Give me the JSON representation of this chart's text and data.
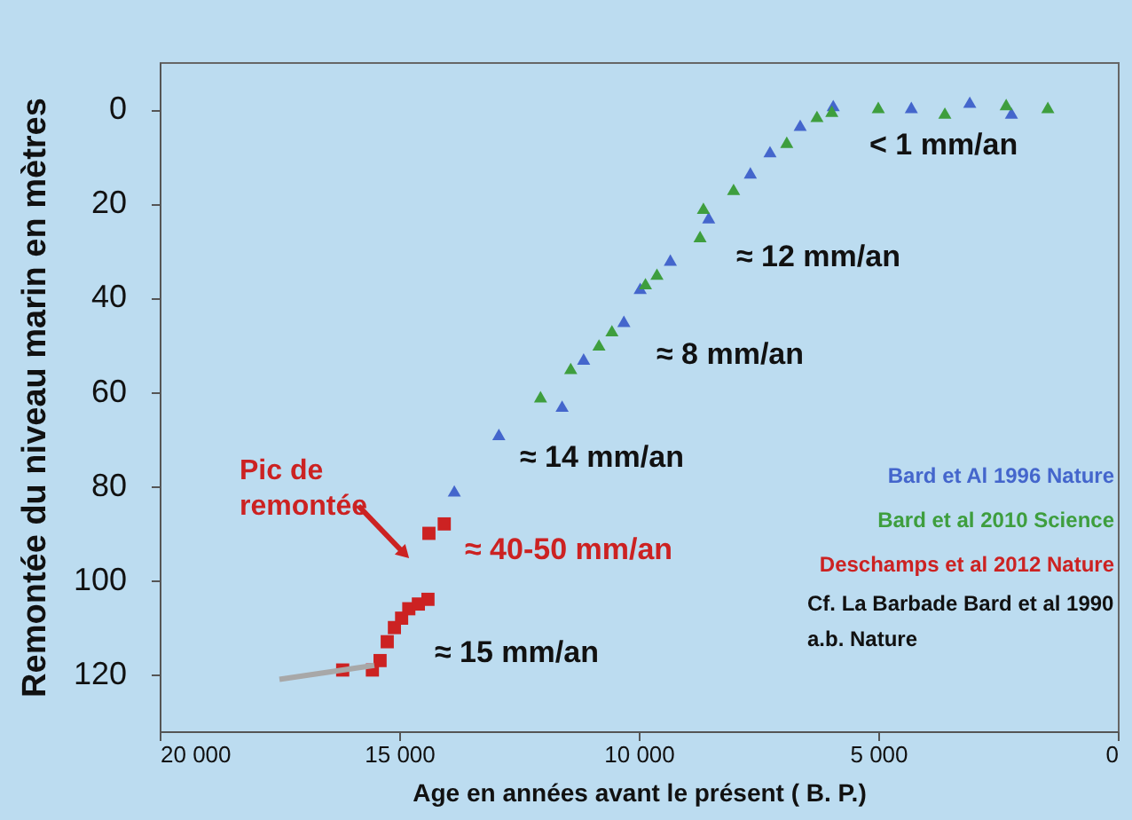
{
  "chart_data": {
    "type": "scatter",
    "xlabel": "Age en années avant le présent  ( B. P.)",
    "ylabel": "Remontée du niveau marin en mètres",
    "xlim": [
      20000,
      0
    ],
    "ylim": [
      132,
      -10
    ],
    "xticks": [
      {
        "value": 20000,
        "label": "20 000"
      },
      {
        "value": 15000,
        "label": "15 000"
      },
      {
        "value": 10000,
        "label": "10 000"
      },
      {
        "value": 5000,
        "label": "5 000"
      },
      0
    ],
    "yticks": [
      0,
      20,
      40,
      60,
      80,
      100,
      120
    ],
    "grid": false,
    "legend": "right",
    "series": [
      {
        "name": "Bard et Al 1996  Nature",
        "color": "#4466cc",
        "marker": "triangle",
        "x": [
          13850,
          12920,
          11600,
          11150,
          10310,
          9970,
          9340,
          8540,
          7670,
          7260,
          6630,
          5940,
          4310,
          3090,
          2220
        ],
        "values": [
          81,
          69,
          63,
          53,
          45,
          38,
          32,
          23,
          13.5,
          9,
          3.4,
          -0.8,
          -0.4,
          -1.5,
          0.8
        ]
      },
      {
        "name": "Bard et al 2010 Science",
        "color": "#3e9e3e",
        "marker": "triangle",
        "x": [
          12050,
          11420,
          10830,
          10560,
          9860,
          9620,
          8720,
          8650,
          8020,
          6910,
          6280,
          5970,
          5000,
          3610,
          2330,
          1460
        ],
        "values": [
          61,
          55,
          50,
          47,
          37,
          35,
          27,
          21,
          17,
          7,
          1.5,
          0.4,
          -0.4,
          0.8,
          -1,
          -0.4
        ]
      },
      {
        "name": "Deschamps et al 2012 Nature",
        "color": "#cc2222",
        "marker": "square",
        "x": [
          16180,
          15560,
          15400,
          15250,
          15100,
          14950,
          14800,
          14600,
          14400,
          14380,
          14060
        ],
        "values": [
          119,
          119,
          117,
          113,
          110,
          108,
          106,
          105,
          104,
          90,
          88
        ]
      },
      {
        "type": "line",
        "color": "#a8a8a8",
        "x": [
          17500,
          15520
        ],
        "values": [
          121,
          118
        ]
      }
    ],
    "annotations": [
      "< 1 mm/an",
      "≈ 12 mm/an",
      "≈ 8 mm/an",
      "≈ 14 mm/an",
      "≈ 40-50 mm/an",
      "≈ 15 mm/an",
      "Pic de\nremontée",
      "Cf. La Barbade Bard et al 1990\na.b. Nature"
    ]
  }
}
